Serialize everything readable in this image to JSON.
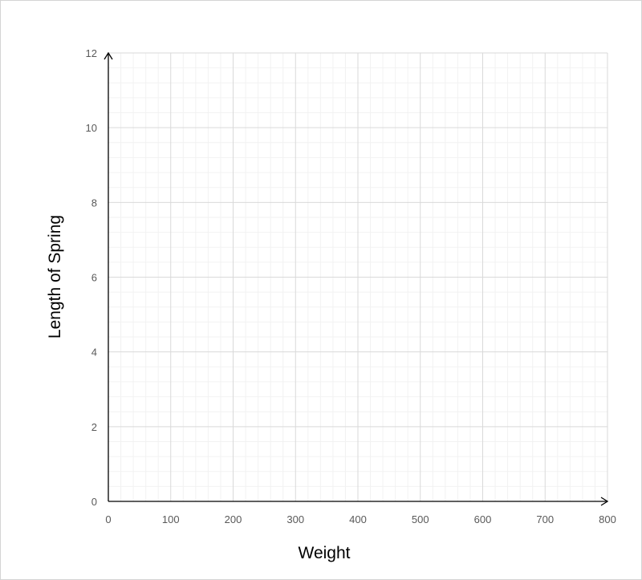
{
  "chart_data": {
    "type": "scatter",
    "title": "",
    "xlabel": "Weight",
    "ylabel": "Length of Spring",
    "xlim": [
      0,
      800
    ],
    "ylim": [
      0,
      12
    ],
    "x_major_step": 100,
    "y_major_step": 2,
    "x_minor_step": 20,
    "y_minor_step": 0.4,
    "x_ticks": [
      "0",
      "100",
      "200",
      "300",
      "400",
      "500",
      "600",
      "700",
      "800"
    ],
    "y_ticks": [
      "0",
      "2",
      "4",
      "6",
      "8",
      "10",
      "12"
    ],
    "grid": "major and minor",
    "legend": "none",
    "series": [],
    "colors": {
      "major_grid": "#d9d9d9",
      "minor_grid": "#f2f2f2",
      "axis": "#000000",
      "tick_text": "#595959"
    }
  }
}
